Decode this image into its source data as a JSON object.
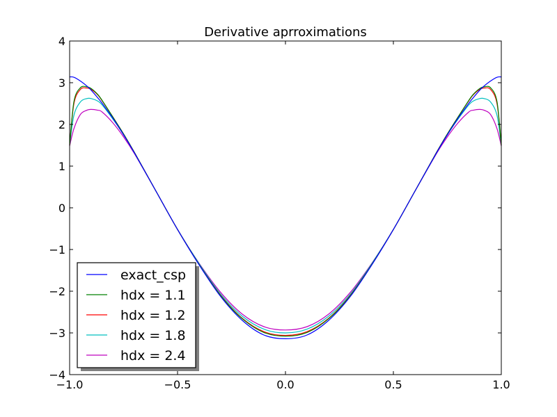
{
  "chart_data": {
    "type": "line",
    "title": "Derivative aprroximations",
    "xlabel": "",
    "ylabel": "",
    "xlim": [
      -1.0,
      1.0
    ],
    "ylim": [
      -4,
      4
    ],
    "x_ticks": [
      -1.0,
      -0.5,
      0.0,
      0.5,
      1.0
    ],
    "x_tick_labels": [
      "−1.0",
      "−0.5",
      "0.0",
      "0.5",
      "1.0"
    ],
    "y_ticks": [
      -4,
      -3,
      -2,
      -1,
      0,
      1,
      2,
      3,
      4
    ],
    "y_tick_labels": [
      "−4",
      "−3",
      "−2",
      "−1",
      "0",
      "1",
      "2",
      "3",
      "4"
    ],
    "grid": false,
    "legend_placement": "lower-left",
    "x": [
      -1.0,
      -0.98,
      -0.95,
      -0.92,
      -0.9,
      -0.87,
      -0.85,
      -0.8,
      -0.75,
      -0.7,
      -0.6,
      -0.5,
      -0.4,
      -0.3,
      -0.2,
      -0.1,
      0.0,
      0.1,
      0.2,
      0.3,
      0.4,
      0.5,
      0.6,
      0.7,
      0.75,
      0.8,
      0.85,
      0.87,
      0.9,
      0.92,
      0.95,
      0.98,
      1.0
    ],
    "series": [
      {
        "name": "exact_csp",
        "color": "#0000ff",
        "values": [
          3.14,
          3.13,
          3.04,
          2.92,
          2.82,
          2.64,
          2.51,
          2.15,
          1.75,
          1.32,
          0.4,
          -0.52,
          -1.37,
          -2.13,
          -2.7,
          -3.05,
          -3.14,
          -3.05,
          -2.7,
          -2.13,
          -1.37,
          -0.52,
          0.4,
          1.32,
          1.75,
          2.15,
          2.51,
          2.64,
          2.82,
          2.92,
          3.04,
          3.13,
          3.14
        ]
      },
      {
        "name": "hdx = 1.1",
        "color": "#008000",
        "values": [
          1.5,
          2.55,
          2.88,
          2.9,
          2.86,
          2.72,
          2.58,
          2.18,
          1.77,
          1.33,
          0.4,
          -0.52,
          -1.36,
          -2.11,
          -2.66,
          -2.99,
          -3.08,
          -2.99,
          -2.66,
          -2.11,
          -1.36,
          -0.52,
          0.4,
          1.33,
          1.77,
          2.18,
          2.58,
          2.72,
          2.86,
          2.9,
          2.88,
          2.55,
          1.5
        ]
      },
      {
        "name": "hdx = 1.2",
        "color": "#ff0000",
        "values": [
          1.5,
          2.5,
          2.84,
          2.87,
          2.84,
          2.71,
          2.57,
          2.18,
          1.77,
          1.33,
          0.4,
          -0.52,
          -1.36,
          -2.1,
          -2.65,
          -2.97,
          -3.06,
          -2.97,
          -2.65,
          -2.1,
          -1.36,
          -0.52,
          0.4,
          1.33,
          1.77,
          2.18,
          2.57,
          2.71,
          2.84,
          2.87,
          2.84,
          2.5,
          1.5
        ]
      },
      {
        "name": "hdx = 1.8",
        "color": "#00bfbf",
        "values": [
          1.5,
          2.22,
          2.54,
          2.62,
          2.62,
          2.56,
          2.47,
          2.13,
          1.75,
          1.32,
          0.4,
          -0.52,
          -1.34,
          -2.07,
          -2.6,
          -2.91,
          -3.0,
          -2.91,
          -2.6,
          -2.07,
          -1.34,
          -0.52,
          0.4,
          1.32,
          1.75,
          2.13,
          2.47,
          2.56,
          2.62,
          2.62,
          2.54,
          2.22,
          1.5
        ]
      },
      {
        "name": "hdx = 2.4",
        "color": "#bf00bf",
        "values": [
          1.48,
          1.9,
          2.24,
          2.34,
          2.36,
          2.34,
          2.3,
          2.04,
          1.7,
          1.3,
          0.4,
          -0.52,
          -1.33,
          -2.03,
          -2.55,
          -2.85,
          -2.93,
          -2.85,
          -2.55,
          -2.03,
          -1.33,
          -0.52,
          0.4,
          1.3,
          1.7,
          2.04,
          2.3,
          2.34,
          2.36,
          2.34,
          2.24,
          1.9,
          1.48
        ]
      }
    ]
  }
}
